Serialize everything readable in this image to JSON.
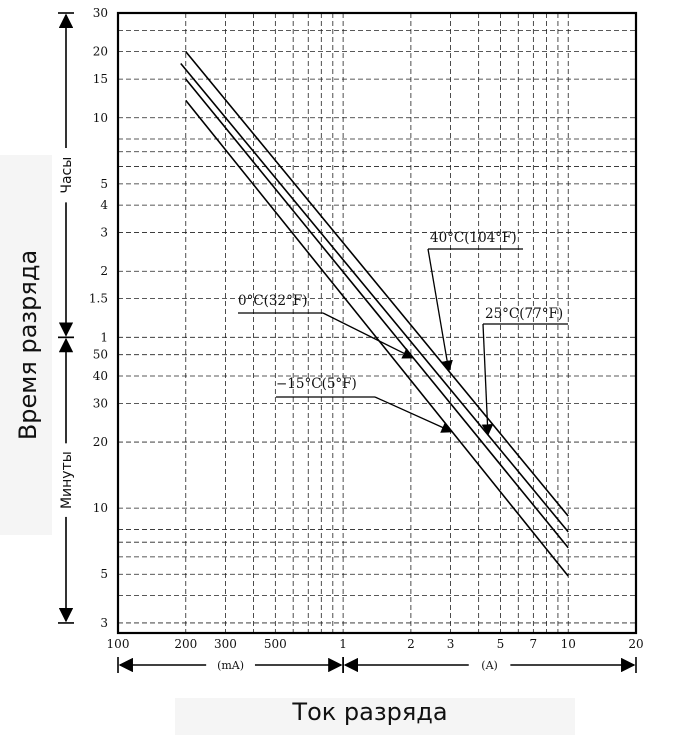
{
  "chart_data": {
    "type": "line",
    "xlabel": "Ток разряда",
    "ylabel": "Время разряда",
    "x_scale": "log",
    "y_scale": "log",
    "xlim_mA": [
      100,
      20000
    ],
    "x_tick_labels": [
      "100",
      "200",
      "300",
      "500",
      "1",
      "2",
      "3",
      "5",
      "7",
      "10",
      "20"
    ],
    "x_tick_values_mA": [
      100,
      200,
      300,
      500,
      1000,
      2000,
      3000,
      5000,
      7000,
      10000,
      20000
    ],
    "x_sections": [
      {
        "label": "(mA)",
        "from_mA": 100,
        "to_mA": 1000
      },
      {
        "label": "(A)",
        "from_mA": 1000,
        "to_mA": 20000
      }
    ],
    "ylim_min": [
      2.7,
      1800
    ],
    "y_tick_labels_hours": [
      "30",
      "20",
      "15",
      "10",
      "5",
      "4",
      "3",
      "2",
      "1.5",
      "1"
    ],
    "y_tick_values_hours": [
      30,
      20,
      15,
      10,
      5,
      4,
      3,
      2,
      1.5,
      1
    ],
    "y_tick_labels_minutes": [
      "50",
      "40",
      "30",
      "20",
      "10",
      "5",
      "3"
    ],
    "y_tick_values_minutes": [
      50,
      40,
      30,
      20,
      10,
      5,
      3
    ],
    "y_sections": [
      {
        "label": "Часы",
        "from_min": 60,
        "to_min": 1800
      },
      {
        "label": "Минуты",
        "from_min": 3,
        "to_min": 60
      }
    ],
    "grid": true,
    "series": [
      {
        "name": "40°C(104°F)",
        "points_mA_min": [
          [
            200,
            1200
          ],
          [
            10000,
            9.2
          ]
        ],
        "label_pos": "upper-right",
        "arrow_at_mA": 2950
      },
      {
        "name": "25°C(77°F)",
        "points_mA_min": [
          [
            190,
            1060
          ],
          [
            10000,
            7.8
          ]
        ],
        "label_pos": "right",
        "arrow_at_mA": 4400
      },
      {
        "name": "0°C(32°F)",
        "points_mA_min": [
          [
            200,
            900
          ],
          [
            10000,
            6.6
          ]
        ],
        "label_pos": "left",
        "arrow_at_mA": 2050
      },
      {
        "name": "−15°C(5°F)",
        "points_mA_min": [
          [
            200,
            720
          ],
          [
            10000,
            4.9
          ]
        ],
        "label_pos": "lower-left",
        "arrow_at_mA": 3050
      }
    ]
  }
}
